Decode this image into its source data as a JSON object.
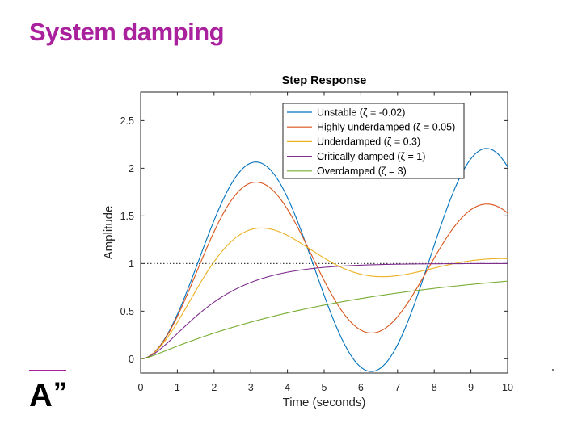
{
  "slide": {
    "title": "System damping",
    "title_color": "#a9219c",
    "accent_color": "#a9219c",
    "logo_letter": "A",
    "logo_mark": "”"
  },
  "chart_data": {
    "type": "line",
    "title": "Step Response",
    "xlabel": "Time (seconds)",
    "ylabel": "Amplitude",
    "xlim": [
      0,
      10
    ],
    "ylim": [
      -0.15,
      2.8
    ],
    "xticks": [
      0,
      1,
      2,
      3,
      4,
      5,
      6,
      7,
      8,
      9,
      10
    ],
    "yticks": [
      0,
      0.5,
      1,
      1.5,
      2,
      2.5
    ],
    "grid": false,
    "legend_position": "top-right",
    "reference_line": {
      "y": 1,
      "style": "dotted",
      "color": "#404040"
    },
    "series": [
      {
        "name": "Unstable (ζ = -0.02)",
        "zeta": -0.02,
        "wn": 1,
        "color": "#0072bd"
      },
      {
        "name": "Highly underdamped (ζ = 0.05)",
        "zeta": 0.05,
        "wn": 1,
        "color": "#d95319"
      },
      {
        "name": "Underdamped (ζ = 0.3)",
        "zeta": 0.3,
        "wn": 1,
        "color": "#edb120"
      },
      {
        "name": "Critically damped (ζ = 1)",
        "zeta": 1,
        "wn": 1,
        "color": "#7e2f8e"
      },
      {
        "name": "Overdamped (ζ = 3)",
        "zeta": 3,
        "wn": 1,
        "color": "#77ac30"
      }
    ]
  }
}
